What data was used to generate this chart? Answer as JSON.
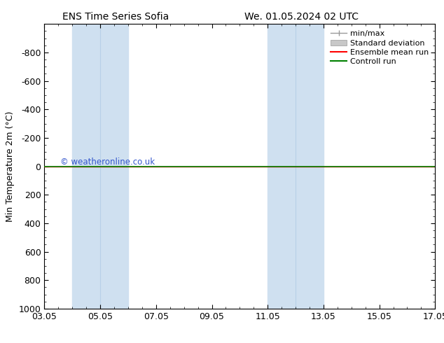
{
  "title_left": "ENS Time Series Sofia",
  "title_right": "We. 01.05.2024 02 UTC",
  "ylabel": "Min Temperature 2m (°C)",
  "ylim": [
    -1000,
    1000
  ],
  "yticks": [
    -800,
    -600,
    -400,
    -200,
    0,
    200,
    400,
    600,
    800,
    1000
  ],
  "xtick_labels": [
    "03.05",
    "05.05",
    "07.05",
    "09.05",
    "11.05",
    "13.05",
    "15.05",
    "17.05"
  ],
  "xtick_positions": [
    0,
    2,
    4,
    6,
    8,
    10,
    12,
    14
  ],
  "bg_color": "#ffffff",
  "plot_bg_color": "#ffffff",
  "shaded_bands": [
    {
      "x_start": 1.33,
      "x_end": 2.0
    },
    {
      "x_start": 2.0,
      "x_end": 3.33
    },
    {
      "x_start": 8.33,
      "x_end": 9.0
    },
    {
      "x_start": 9.0,
      "x_end": 10.33
    }
  ],
  "shaded_color": "#cfe0f0",
  "green_line_y": 0,
  "red_line_y": 0,
  "legend_entries": [
    "min/max",
    "Standard deviation",
    "Ensemble mean run",
    "Controll run"
  ],
  "watermark": "© weatheronline.co.uk",
  "watermark_color": "#3355cc",
  "border_color": "#000000",
  "tick_color": "#000000",
  "font_size": 9,
  "title_font_size": 10
}
